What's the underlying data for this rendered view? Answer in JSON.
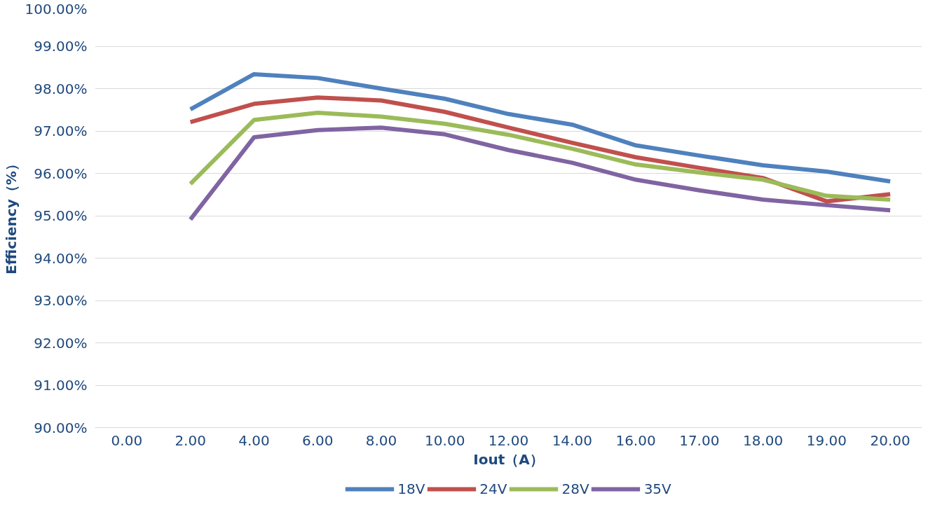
{
  "chart_data": {
    "type": "line",
    "xlabel": "Iout（A）",
    "ylabel": "Efficiency（%）",
    "categories": [
      "0.00",
      "2.00",
      "4.00",
      "6.00",
      "8.00",
      "10.00",
      "12.00",
      "14.00",
      "16.00",
      "17.00",
      "18.00",
      "19.00",
      "20.00"
    ],
    "ylim": [
      90,
      100
    ],
    "yticks": [
      {
        "value": 90,
        "label": "90.00%"
      },
      {
        "value": 91,
        "label": "91.00%"
      },
      {
        "value": 92,
        "label": "92.00%"
      },
      {
        "value": 93,
        "label": "93.00%"
      },
      {
        "value": 94,
        "label": "94.00%"
      },
      {
        "value": 95,
        "label": "95.00%"
      },
      {
        "value": 96,
        "label": "96.00%"
      },
      {
        "value": 97,
        "label": "97.00%"
      },
      {
        "value": 98,
        "label": "98.00%"
      },
      {
        "value": 99,
        "label": "99.00%"
      },
      {
        "value": 100,
        "label": "100.00%"
      }
    ],
    "grid": "y",
    "legend": "bottom",
    "marker": "none",
    "line_style": "solid",
    "series": [
      {
        "name": "18V",
        "color": "#4f81bd",
        "values": [
          null,
          97.51,
          98.34,
          98.25,
          98.0,
          97.76,
          97.4,
          97.15,
          96.66,
          96.42,
          96.19,
          96.04,
          95.81
        ]
      },
      {
        "name": "24V",
        "color": "#c0504d",
        "values": [
          null,
          97.21,
          97.64,
          97.79,
          97.72,
          97.45,
          97.08,
          96.72,
          96.38,
          96.13,
          95.89,
          95.34,
          95.51
        ]
      },
      {
        "name": "28V",
        "color": "#9bbb59",
        "values": [
          null,
          95.75,
          97.26,
          97.43,
          97.34,
          97.17,
          96.91,
          96.58,
          96.21,
          96.02,
          95.85,
          95.47,
          95.38
        ]
      },
      {
        "name": "35V",
        "color": "#8064a2",
        "values": [
          null,
          94.91,
          96.85,
          97.02,
          97.08,
          96.92,
          96.55,
          96.25,
          95.85,
          95.6,
          95.38,
          95.25,
          95.13
        ]
      }
    ]
  }
}
